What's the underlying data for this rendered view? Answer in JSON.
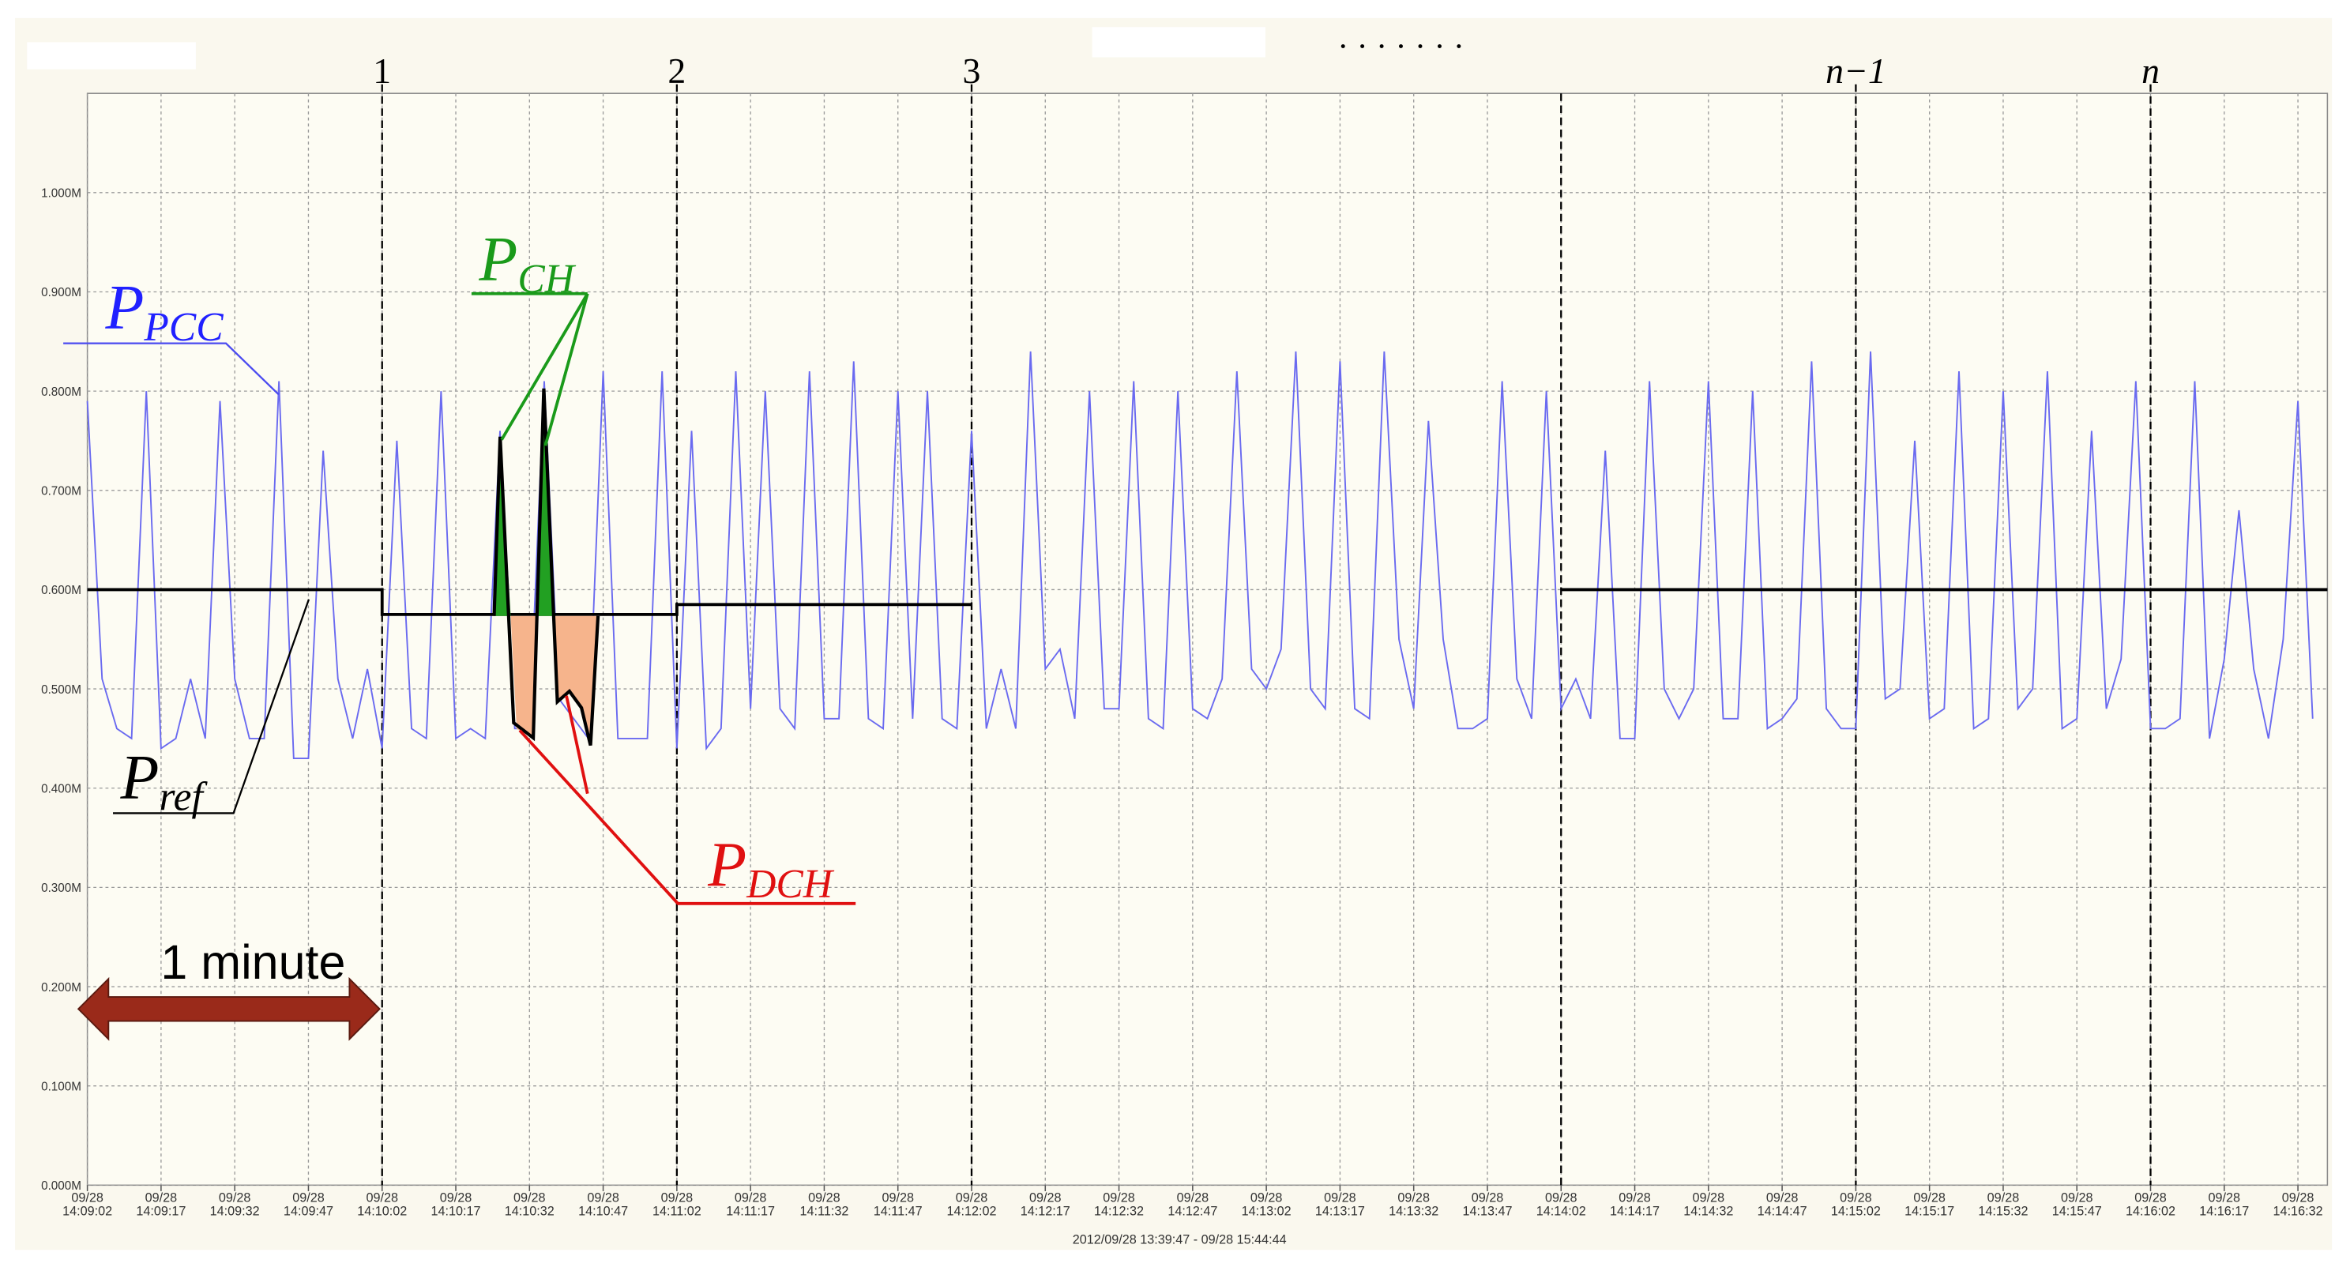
{
  "chart_data": {
    "type": "line",
    "footer": "2012/09/28 13:39:47 - 09/28 15:44:44",
    "xlim": [
      "14:09:02",
      "14:16:38"
    ],
    "ylim": [
      0,
      1.1
    ],
    "grid": true,
    "yticks": [
      {
        "value": 0,
        "label": "0.000M"
      },
      {
        "value": 0.1,
        "label": "0.100M"
      },
      {
        "value": 0.2,
        "label": "0.200M"
      },
      {
        "value": 0.3,
        "label": "0.300M"
      },
      {
        "value": 0.4,
        "label": "0.400M"
      },
      {
        "value": 0.5,
        "label": "0.500M"
      },
      {
        "value": 0.6,
        "label": "0.600M"
      },
      {
        "value": 0.7,
        "label": "0.700M"
      },
      {
        "value": 0.8,
        "label": "0.800M"
      },
      {
        "value": 0.9,
        "label": "0.900M"
      },
      {
        "value": 1.0,
        "label": "1.000M"
      }
    ],
    "xticks": [
      {
        "value": "14:09:02",
        "label": [
          "09/28",
          "14:09:02"
        ]
      },
      {
        "value": "14:09:17",
        "label": [
          "09/28",
          "14:09:17"
        ]
      },
      {
        "value": "14:09:32",
        "label": [
          "09/28",
          "14:09:32"
        ]
      },
      {
        "value": "14:09:47",
        "label": [
          "09/28",
          "14:09:47"
        ]
      },
      {
        "value": "14:10:02",
        "label": [
          "09/28",
          "14:10:02"
        ]
      },
      {
        "value": "14:10:17",
        "label": [
          "09/28",
          "14:10:17"
        ]
      },
      {
        "value": "14:10:32",
        "label": [
          "09/28",
          "14:10:32"
        ]
      },
      {
        "value": "14:10:47",
        "label": [
          "09/28",
          "14:10:47"
        ]
      },
      {
        "value": "14:11:02",
        "label": [
          "09/28",
          "14:11:02"
        ]
      },
      {
        "value": "14:11:17",
        "label": [
          "09/28",
          "14:11:17"
        ]
      },
      {
        "value": "14:11:32",
        "label": [
          "09/28",
          "14:11:32"
        ]
      },
      {
        "value": "14:11:47",
        "label": [
          "09/28",
          "14:11:47"
        ]
      },
      {
        "value": "14:12:02",
        "label": [
          "09/28",
          "14:12:02"
        ]
      },
      {
        "value": "14:12:17",
        "label": [
          "09/28",
          "14:12:17"
        ]
      },
      {
        "value": "14:12:32",
        "label": [
          "09/28",
          "14:12:32"
        ]
      },
      {
        "value": "14:12:47",
        "label": [
          "09/28",
          "14:12:47"
        ]
      },
      {
        "value": "14:13:02",
        "label": [
          "09/28",
          "14:13:02"
        ]
      },
      {
        "value": "14:13:17",
        "label": [
          "09/28",
          "14:13:17"
        ]
      },
      {
        "value": "14:13:32",
        "label": [
          "09/28",
          "14:13:32"
        ]
      },
      {
        "value": "14:13:47",
        "label": [
          "09/28",
          "14:13:47"
        ]
      },
      {
        "value": "14:14:02",
        "label": [
          "09/28",
          "14:14:02"
        ]
      },
      {
        "value": "14:14:17",
        "label": [
          "09/28",
          "14:14:17"
        ]
      },
      {
        "value": "14:14:32",
        "label": [
          "09/28",
          "14:14:32"
        ]
      },
      {
        "value": "14:14:47",
        "label": [
          "09/28",
          "14:14:47"
        ]
      },
      {
        "value": "14:15:02",
        "label": [
          "09/28",
          "14:15:02"
        ]
      },
      {
        "value": "14:15:17",
        "label": [
          "09/28",
          "14:15:17"
        ]
      },
      {
        "value": "14:15:32",
        "label": [
          "09/28",
          "14:15:32"
        ]
      },
      {
        "value": "14:15:47",
        "label": [
          "09/28",
          "14:15:47"
        ]
      },
      {
        "value": "14:16:02",
        "label": [
          "09/28",
          "14:16:02"
        ]
      },
      {
        "value": "14:16:17",
        "label": [
          "09/28",
          "14:16:17"
        ]
      },
      {
        "value": "14:16:32",
        "label": [
          "09/28",
          "14:16:32"
        ]
      }
    ],
    "markers": [
      {
        "x": "14:10:02",
        "label": "1"
      },
      {
        "x": "14:11:02",
        "label": "2"
      },
      {
        "x": "14:12:02",
        "label": "3"
      },
      {
        "x": "14:14:02"
      },
      {
        "x": "14:15:02",
        "label": "n−1"
      },
      {
        "x": "14:16:02",
        "label": "n"
      }
    ],
    "ellipsis": "· · · · · · ·",
    "span_label": "1 minute",
    "charge_label": {
      "text": "P",
      "sub": "CH"
    },
    "discharge_label": {
      "text": "P",
      "sub": "DCH"
    },
    "series": [
      {
        "label": {
          "text": "P",
          "sub": "PCC"
        },
        "color": "#6a6af0",
        "x": [
          "14:09:02",
          "14:09:05",
          "14:09:08",
          "14:09:11",
          "14:09:14",
          "14:09:17",
          "14:09:20",
          "14:09:23",
          "14:09:26",
          "14:09:29",
          "14:09:32",
          "14:09:35",
          "14:09:38",
          "14:09:41",
          "14:09:44",
          "14:09:47",
          "14:09:50",
          "14:09:53",
          "14:09:56",
          "14:09:59",
          "14:10:02",
          "14:10:05",
          "14:10:08",
          "14:10:11",
          "14:10:14",
          "14:10:17",
          "14:10:20",
          "14:10:23",
          "14:10:26",
          "14:10:29",
          "14:10:32",
          "14:10:35",
          "14:10:38",
          "14:10:41",
          "14:10:44",
          "14:10:47",
          "14:10:50",
          "14:10:53",
          "14:10:56",
          "14:10:59",
          "14:11:02",
          "14:11:05",
          "14:11:08",
          "14:11:11",
          "14:11:14",
          "14:11:17",
          "14:11:20",
          "14:11:23",
          "14:11:26",
          "14:11:29",
          "14:11:32",
          "14:11:35",
          "14:11:38",
          "14:11:41",
          "14:11:44",
          "14:11:47",
          "14:11:50",
          "14:11:53",
          "14:11:56",
          "14:11:59",
          "14:12:02",
          "14:12:05",
          "14:12:08",
          "14:12:11",
          "14:12:14",
          "14:12:17",
          "14:12:20",
          "14:12:23",
          "14:12:26",
          "14:12:29",
          "14:12:32",
          "14:12:35",
          "14:12:38",
          "14:12:41",
          "14:12:44",
          "14:12:47",
          "14:12:50",
          "14:12:53",
          "14:12:56",
          "14:12:59",
          "14:13:02",
          "14:13:05",
          "14:13:08",
          "14:13:11",
          "14:13:14",
          "14:13:17",
          "14:13:20",
          "14:13:23",
          "14:13:26",
          "14:13:29",
          "14:13:32",
          "14:13:35",
          "14:13:38",
          "14:13:41",
          "14:13:44",
          "14:13:47",
          "14:13:50",
          "14:13:53",
          "14:13:56",
          "14:13:59",
          "14:14:02",
          "14:14:05",
          "14:14:08",
          "14:14:11",
          "14:14:14",
          "14:14:17",
          "14:14:20",
          "14:14:23",
          "14:14:26",
          "14:14:29",
          "14:14:32",
          "14:14:35",
          "14:14:38",
          "14:14:41",
          "14:14:44",
          "14:14:47",
          "14:14:50",
          "14:14:53",
          "14:14:56",
          "14:14:59",
          "14:15:02",
          "14:15:05",
          "14:15:08",
          "14:15:11",
          "14:15:14",
          "14:15:17",
          "14:15:20",
          "14:15:23",
          "14:15:26",
          "14:15:29",
          "14:15:32",
          "14:15:35",
          "14:15:38",
          "14:15:41",
          "14:15:44",
          "14:15:47",
          "14:15:50",
          "14:15:53",
          "14:15:56",
          "14:15:59",
          "14:16:02",
          "14:16:05",
          "14:16:08",
          "14:16:11",
          "14:16:14",
          "14:16:17",
          "14:16:20",
          "14:16:23",
          "14:16:26",
          "14:16:29",
          "14:16:32",
          "14:16:35"
        ],
        "values": [
          0.79,
          0.51,
          0.46,
          0.45,
          0.8,
          0.44,
          0.45,
          0.51,
          0.45,
          0.79,
          0.51,
          0.45,
          0.45,
          0.81,
          0.43,
          0.43,
          0.74,
          0.51,
          0.45,
          0.52,
          0.44,
          0.75,
          0.46,
          0.45,
          0.8,
          0.45,
          0.46,
          0.45,
          0.76,
          0.46,
          0.46,
          0.81,
          0.49,
          0.47,
          0.45,
          0.82,
          0.45,
          0.45,
          0.45,
          0.82,
          0.44,
          0.76,
          0.44,
          0.46,
          0.82,
          0.48,
          0.8,
          0.48,
          0.46,
          0.82,
          0.47,
          0.47,
          0.83,
          0.47,
          0.46,
          0.8,
          0.47,
          0.8,
          0.47,
          0.46,
          0.76,
          0.46,
          0.52,
          0.46,
          0.84,
          0.52,
          0.54,
          0.47,
          0.8,
          0.48,
          0.48,
          0.81,
          0.47,
          0.46,
          0.8,
          0.48,
          0.47,
          0.51,
          0.82,
          0.52,
          0.5,
          0.54,
          0.84,
          0.5,
          0.48,
          0.83,
          0.48,
          0.47,
          0.84,
          0.55,
          0.48,
          0.77,
          0.55,
          0.46,
          0.46,
          0.47,
          0.81,
          0.51,
          0.47,
          0.8,
          0.48,
          0.51,
          0.47,
          0.74,
          0.45,
          0.45,
          0.81,
          0.5,
          0.47,
          0.5,
          0.81,
          0.47,
          0.47,
          0.8,
          0.46,
          0.47,
          0.49,
          0.83,
          0.48,
          0.46,
          0.46,
          0.84,
          0.49,
          0.5,
          0.75,
          0.47,
          0.48,
          0.82,
          0.46,
          0.47,
          0.8,
          0.48,
          0.5,
          0.82,
          0.46,
          0.47,
          0.76,
          0.48,
          0.53,
          0.81,
          0.46,
          0.46,
          0.47,
          0.81,
          0.45,
          0.53,
          0.68,
          0.52,
          0.45,
          0.55,
          0.79,
          0.47
        ]
      },
      {
        "label": {
          "text": "P",
          "sub": "ref"
        },
        "color": "#000000",
        "x": [
          "14:09:02",
          "14:10:02",
          "14:10:02",
          "14:11:02",
          "14:11:02",
          "14:12:02",
          "14:13:02",
          "14:14:02",
          "14:16:38"
        ],
        "values": [
          0.6,
          0.6,
          0.575,
          0.575,
          0.585,
          0.585,
          null,
          0.6,
          0.6
        ]
      }
    ]
  }
}
